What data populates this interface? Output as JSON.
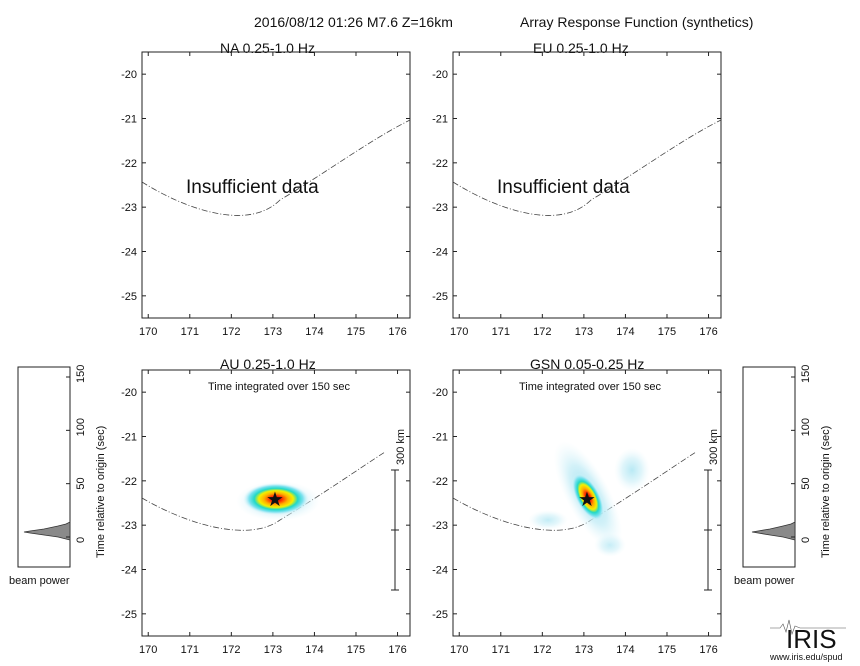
{
  "header": {
    "event": "2016/08/12 01:26  M7.6  Z=16km",
    "title": "Array Response Function (synthetics)"
  },
  "chart_data": [
    {
      "type": "heatmap",
      "title": "NA  0.25-1.0 Hz",
      "x_ticks": [
        "170",
        "171",
        "172",
        "173",
        "174",
        "175",
        "176"
      ],
      "y_ticks": [
        "-20",
        "-21",
        "-22",
        "-23",
        "-24",
        "-25"
      ],
      "xlim": [
        169.85,
        176.3
      ],
      "ylim": [
        -25.5,
        -19.5
      ],
      "message": "Insufficient data",
      "annotation": "",
      "has_data": false
    },
    {
      "type": "heatmap",
      "title": "EU  0.25-1.0 Hz",
      "x_ticks": [
        "170",
        "171",
        "172",
        "173",
        "174",
        "175",
        "176"
      ],
      "y_ticks": [
        "-20",
        "-21",
        "-22",
        "-23",
        "-24",
        "-25"
      ],
      "xlim": [
        169.85,
        176.3
      ],
      "ylim": [
        -25.5,
        -19.5
      ],
      "message": "Insufficient data",
      "annotation": "",
      "has_data": false
    },
    {
      "type": "heatmap",
      "title": "AU  0.25-1.0 Hz",
      "x_ticks": [
        "170",
        "171",
        "172",
        "173",
        "174",
        "175",
        "176"
      ],
      "y_ticks": [
        "-20",
        "-21",
        "-22",
        "-23",
        "-24",
        "-25"
      ],
      "xlim": [
        169.85,
        176.3
      ],
      "ylim": [
        -25.5,
        -19.5
      ],
      "message": "",
      "annotation": "Time integrated over 150 sec",
      "has_data": true,
      "epicenter": {
        "lon": 173.1,
        "lat": -22.47
      },
      "scale_bar_label": "300 km"
    },
    {
      "type": "heatmap",
      "title": "GSN  0.05-0.25 Hz",
      "x_ticks": [
        "170",
        "171",
        "172",
        "173",
        "174",
        "175",
        "176"
      ],
      "y_ticks": [
        "-20",
        "-21",
        "-22",
        "-23",
        "-24",
        "-25"
      ],
      "xlim": [
        169.85,
        176.3
      ],
      "ylim": [
        -25.5,
        -19.5
      ],
      "message": "",
      "annotation": "Time integrated over 150 sec",
      "has_data": true,
      "epicenter": {
        "lon": 173.05,
        "lat": -22.45
      },
      "scale_bar_label": "300 km"
    }
  ],
  "beam_power": {
    "left": {
      "label": "beam power",
      "axis_label": "Time relative to origin (sec)",
      "y_ticks": [
        "0",
        "50",
        "100",
        "150"
      ],
      "peak_time": 15
    },
    "right": {
      "label": "beam power",
      "axis_label": "Time relative to origin (sec)",
      "y_ticks": [
        "0",
        "50",
        "100",
        "150"
      ],
      "peak_time": 15
    }
  },
  "logo": {
    "text": "IRIS",
    "url": "www.iris.edu/spud"
  }
}
